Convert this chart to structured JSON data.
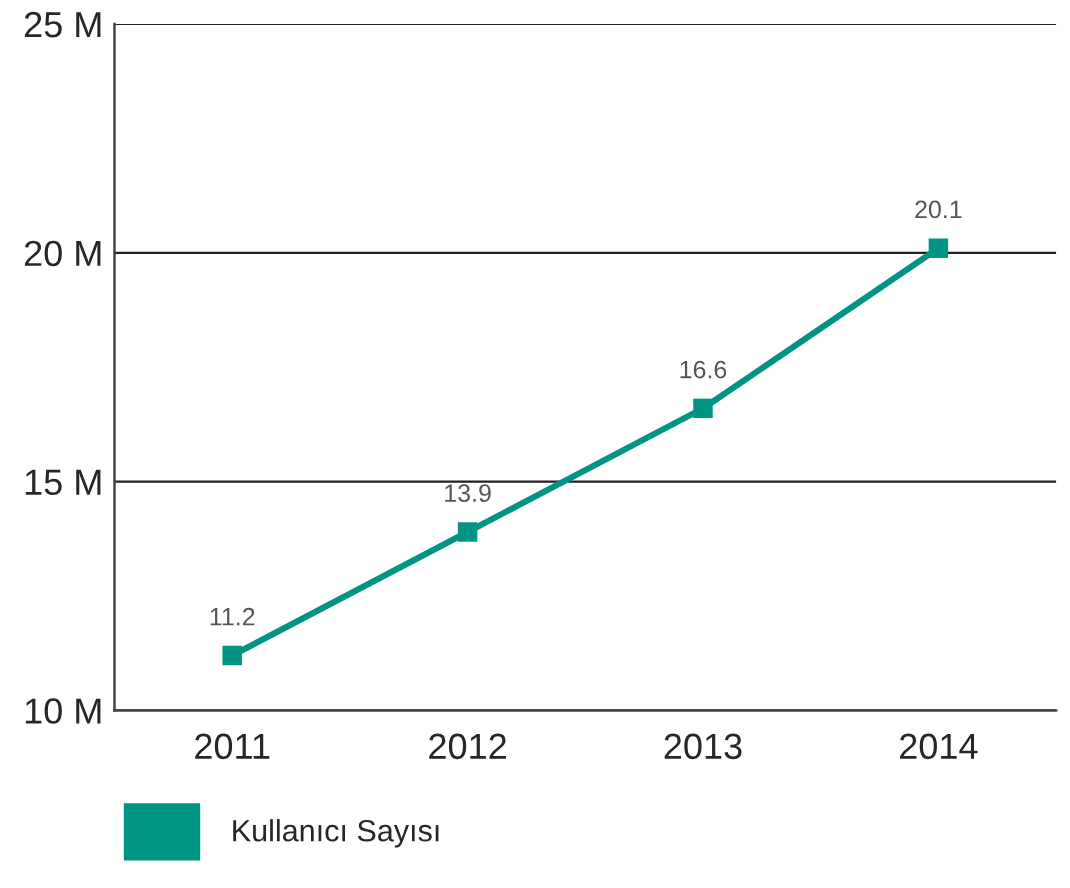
{
  "chart_data": {
    "type": "line",
    "categories": [
      "2011",
      "2012",
      "2013",
      "2014"
    ],
    "series": [
      {
        "name": "Kullanıcı Sayısı",
        "color": "#009485",
        "values": [
          11.2,
          13.9,
          16.6,
          20.1
        ]
      }
    ],
    "ylim": [
      10,
      25
    ],
    "yticks": [
      {
        "value": 10,
        "label": "10 M"
      },
      {
        "value": 15,
        "label": "15 M"
      },
      {
        "value": 20,
        "label": "20 M"
      },
      {
        "value": 25,
        "label": "25 M"
      }
    ],
    "grid": "y",
    "legend": "bottom",
    "marker": "square",
    "line_style": "solid",
    "data_labels": true
  }
}
